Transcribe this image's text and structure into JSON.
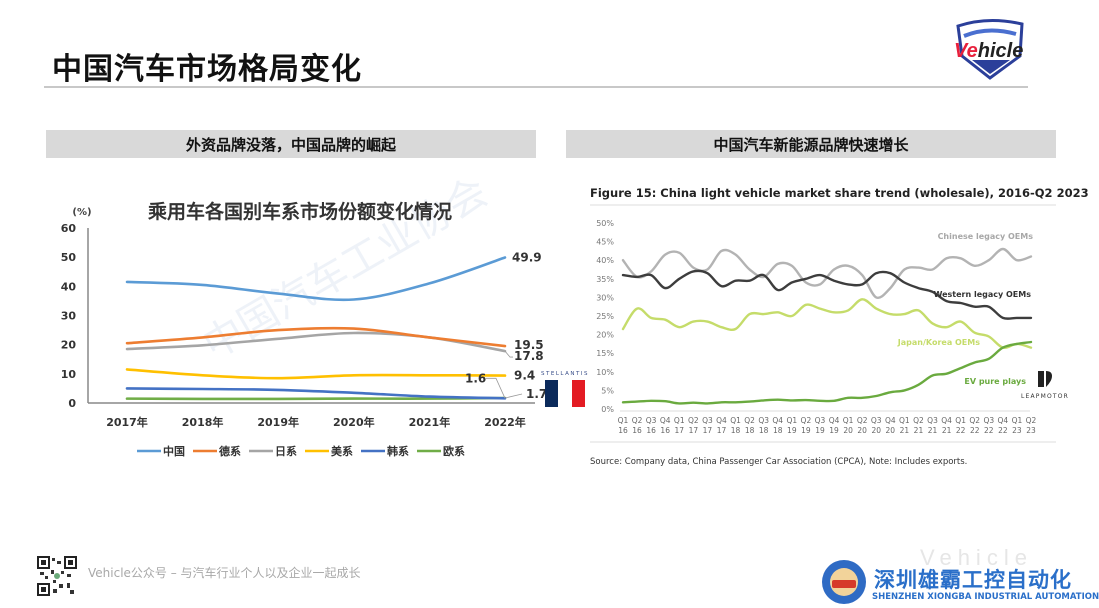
{
  "page": {
    "title": "中国汽车市场格局变化",
    "logo_text_accent": "Ve",
    "logo_text_rest": "hicle"
  },
  "sections": {
    "left_header": "外资品牌没落，中国品牌的崛起",
    "right_header": "中国汽车新能源品牌快速增长"
  },
  "badges": {
    "stellantis": "STELLANTIS",
    "leapmotor": "LEAPMOTOR"
  },
  "colors": {
    "china": "#5b9bd5",
    "germany": "#ed7d31",
    "japan": "#a5a5a5",
    "usa": "#ffc000",
    "korea": "#4472c4",
    "europe": "#70ad47",
    "chinese_legacy": "#b3b3b3",
    "western_legacy": "#3d3d3d",
    "japan_korea": "#c5dc6a",
    "ev_pure": "#6aaa3f",
    "section_bg": "#d9d9d9",
    "flag_blue": "#0b2a5b",
    "flag_red": "#e31b23",
    "brand_blue": "#2a6fc9"
  },
  "footer": {
    "text": "Vehicle公众号 – 与汽车行业个人以及企业一起成长",
    "company_cn": "深圳雄霸工控自动化",
    "company_en": "SHENZHEN XIONGBA INDUSTRIAL AUTOMATION",
    "watermark": "Vehicle"
  },
  "chart_data": [
    {
      "type": "line",
      "title": "乘用车各国别车系市场份额变化情况",
      "ylabel": "(%)",
      "xlabel": "",
      "ylim": [
        0,
        60
      ],
      "yticks": [
        0,
        10,
        20,
        30,
        40,
        50,
        60
      ],
      "categories": [
        "2017年",
        "2018年",
        "2019年",
        "2020年",
        "2021年",
        "2022年"
      ],
      "grid": false,
      "legend_position": "bottom",
      "series": [
        {
          "name": "中国",
          "key": "china",
          "values": [
            41.5,
            40.5,
            37.5,
            35.5,
            41.0,
            49.9
          ],
          "end_label": "49.9"
        },
        {
          "name": "德系",
          "key": "germany",
          "values": [
            20.5,
            22.5,
            25.0,
            25.5,
            22.5,
            19.5
          ],
          "end_label": "19.5"
        },
        {
          "name": "日系",
          "key": "japan",
          "values": [
            18.5,
            19.8,
            22.0,
            24.0,
            22.5,
            17.8
          ],
          "end_label": "17.8"
        },
        {
          "name": "美系",
          "key": "usa",
          "values": [
            11.5,
            9.5,
            8.5,
            9.5,
            9.5,
            9.4
          ],
          "end_label": "9.4"
        },
        {
          "name": "韩系",
          "key": "korea",
          "values": [
            5.0,
            4.8,
            4.5,
            3.5,
            2.2,
            1.6
          ],
          "end_label": "1.6"
        },
        {
          "name": "欧系",
          "key": "europe",
          "values": [
            1.5,
            1.4,
            1.4,
            1.5,
            1.5,
            1.7
          ],
          "end_label": "1.7"
        }
      ]
    },
    {
      "type": "line",
      "title": "Figure 15: China light vehicle market share trend (wholesale), 2016-Q2 2023",
      "source": "Source: Company data, China Passenger Car Association (CPCA), Note: Includes exports.",
      "ylim": [
        0,
        50
      ],
      "yticks": [
        "0%",
        "5%",
        "10%",
        "15%",
        "20%",
        "25%",
        "30%",
        "35%",
        "40%",
        "45%",
        "50%"
      ],
      "grid": false,
      "legend_position": "inline-right",
      "x_quarters": [
        "Q1",
        "Q2",
        "Q3",
        "Q4",
        "Q1",
        "Q2",
        "Q3",
        "Q4",
        "Q1",
        "Q2",
        "Q3",
        "Q4",
        "Q1",
        "Q2",
        "Q3",
        "Q4",
        "Q1",
        "Q2",
        "Q3",
        "Q4",
        "Q1",
        "Q2",
        "Q3",
        "Q4",
        "Q1",
        "Q2",
        "Q3",
        "Q4",
        "Q1",
        "Q2"
      ],
      "x_years": [
        "16",
        "16",
        "16",
        "16",
        "17",
        "17",
        "17",
        "17",
        "18",
        "18",
        "18",
        "18",
        "19",
        "19",
        "19",
        "19",
        "20",
        "20",
        "20",
        "20",
        "21",
        "21",
        "21",
        "21",
        "22",
        "22",
        "22",
        "22",
        "23",
        "23"
      ],
      "series": [
        {
          "name": "Chinese legacy OEMs",
          "key": "chinese_legacy",
          "values": [
            40.0,
            35.5,
            37.0,
            41.5,
            42.0,
            38.0,
            37.5,
            42.5,
            41.5,
            37.5,
            35.5,
            39.0,
            38.5,
            34.0,
            33.5,
            37.5,
            38.5,
            36.0,
            30.0,
            32.5,
            37.5,
            38.0,
            37.5,
            40.5,
            40.5,
            38.5,
            40.0,
            43.0,
            40.0,
            41.0
          ]
        },
        {
          "name": "Western legacy OEMs",
          "key": "western_legacy",
          "values": [
            36.0,
            35.5,
            36.0,
            32.5,
            35.0,
            37.0,
            36.5,
            33.0,
            34.5,
            34.5,
            36.0,
            32.0,
            34.0,
            35.0,
            36.0,
            34.5,
            33.5,
            33.5,
            36.5,
            36.5,
            34.0,
            32.5,
            31.5,
            29.0,
            28.5,
            27.5,
            27.5,
            24.5,
            24.5,
            24.5
          ]
        },
        {
          "name": "Japan/Korea OEMs",
          "key": "japan_korea",
          "values": [
            21.5,
            27.0,
            24.5,
            24.0,
            22.0,
            23.5,
            23.5,
            22.0,
            21.5,
            25.5,
            25.5,
            26.0,
            25.0,
            28.0,
            27.0,
            26.0,
            26.5,
            29.5,
            27.0,
            25.5,
            25.5,
            26.5,
            23.0,
            22.0,
            23.5,
            20.5,
            19.5,
            16.5,
            17.5,
            16.5
          ]
        },
        {
          "name": "EV pure plays",
          "key": "ev_pure",
          "values": [
            1.8,
            2.0,
            2.2,
            2.1,
            1.5,
            1.7,
            1.5,
            1.8,
            1.8,
            2.0,
            2.3,
            2.5,
            2.3,
            2.4,
            2.2,
            2.2,
            3.0,
            3.0,
            3.5,
            4.5,
            5.0,
            6.5,
            9.0,
            9.5,
            11.0,
            12.5,
            13.5,
            16.5,
            17.5,
            18.0
          ]
        }
      ]
    }
  ]
}
